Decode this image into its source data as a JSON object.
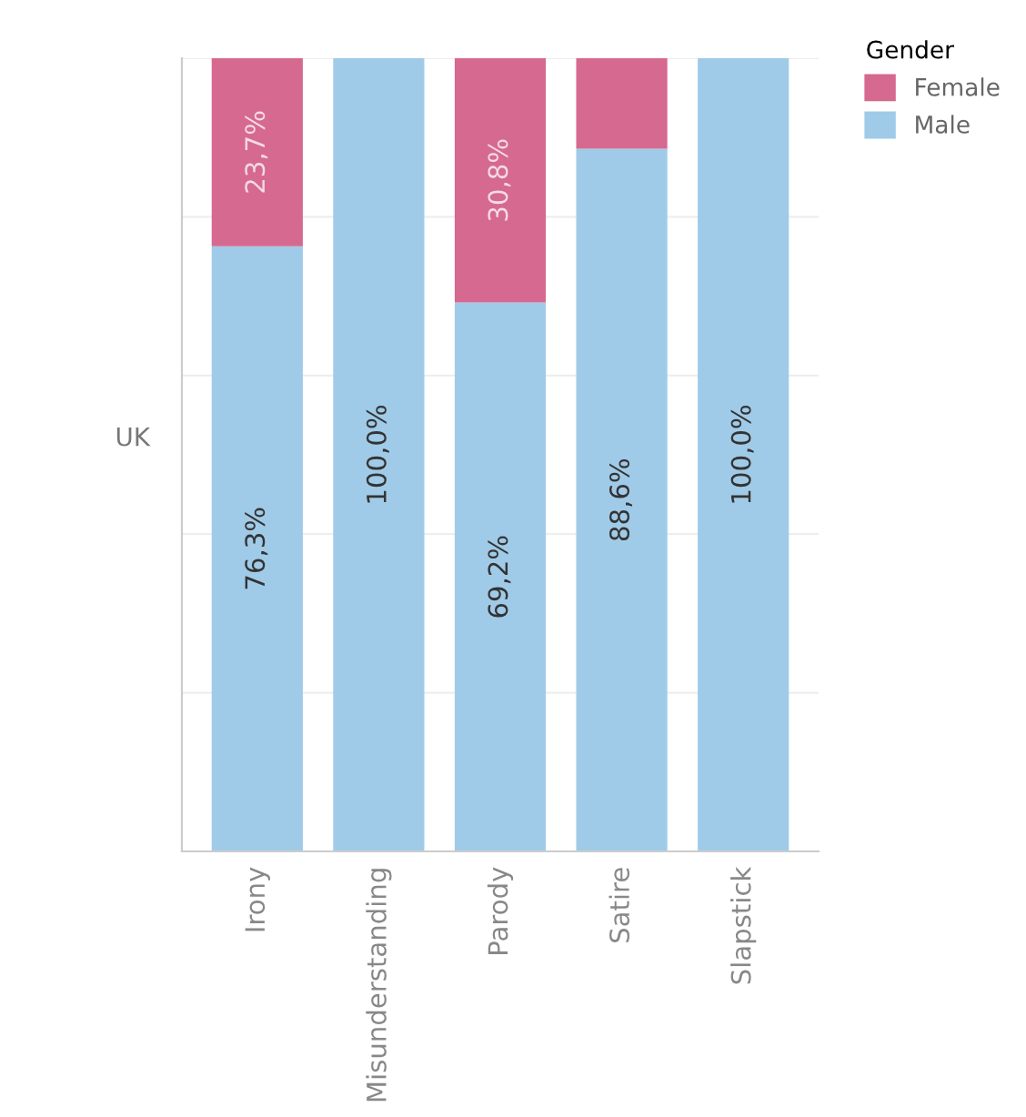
{
  "chart_data": {
    "type": "bar",
    "stacked": true,
    "annotations": [
      "UK"
    ],
    "legend_title": "Gender",
    "legend": "top right",
    "grid": "y",
    "tick_labels": "x",
    "categories": [
      "Irony",
      "Misunderstanding",
      "Parody",
      "Satire",
      "Slapstick"
    ],
    "ylim": [
      0,
      100
    ],
    "yticks": [
      {
        "value": 0,
        "label": null
      },
      {
        "value": 20,
        "label": null
      },
      {
        "value": 40,
        "label": null
      },
      {
        "value": 60,
        "label": null
      },
      {
        "value": 80,
        "label": null
      },
      {
        "value": 100,
        "label": null
      }
    ],
    "series": [
      {
        "name": "Male",
        "color": "#a0cbe8",
        "values": [
          76.3,
          100.0,
          69.2,
          88.6,
          100.0
        ],
        "value_labels": [
          "76,3%",
          "100,0%",
          "69,2%",
          "88,6%",
          "100,0%"
        ]
      },
      {
        "name": "Female",
        "color": "#d6698f",
        "values": [
          23.7,
          0,
          30.8,
          11.4,
          0
        ],
        "value_labels": [
          "23,7%",
          null,
          "30,8%",
          null,
          null
        ]
      }
    ]
  }
}
